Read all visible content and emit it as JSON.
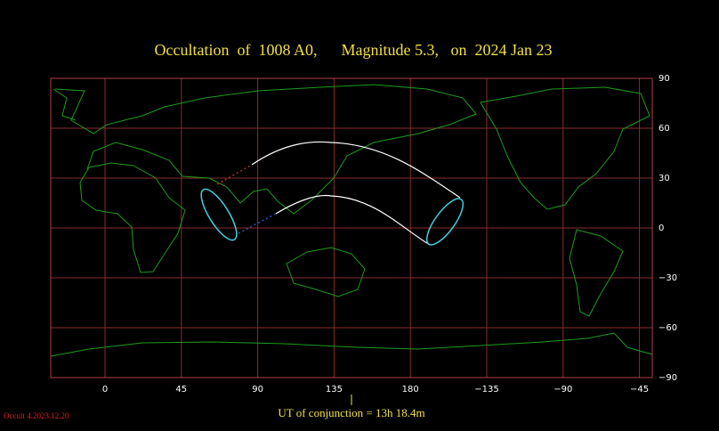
{
  "map": {
    "title": "Occultation  of  1008 A0,      Magnitude 5.3,   on  2024 Jan 23",
    "lon_ticks": [
      0,
      45,
      90,
      135,
      180,
      {
        "value": -135,
        "label": "−135"
      },
      {
        "value": -90,
        "label": "−90"
      },
      {
        "value": -45,
        "label": "−45"
      }
    ],
    "lat_ticks": [
      90,
      60,
      30,
      0,
      {
        "value": -30,
        "label": "−30"
      },
      {
        "value": -60,
        "label": "−60"
      },
      {
        "value": -90,
        "label": "−90"
      }
    ],
    "caption": "UT of conjunction = 13h 18.4m",
    "version": "Occult 4.2023.12.20"
  }
}
